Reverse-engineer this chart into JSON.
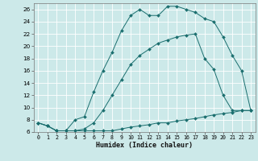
{
  "title": "",
  "xlabel": "Humidex (Indice chaleur)",
  "background_color": "#cce9e9",
  "grid_color": "#aacccc",
  "line_color": "#1a6e6e",
  "xlim": [
    -0.5,
    23.5
  ],
  "ylim": [
    6,
    27
  ],
  "xticks": [
    0,
    1,
    2,
    3,
    4,
    5,
    6,
    7,
    8,
    9,
    10,
    11,
    12,
    13,
    14,
    15,
    16,
    17,
    18,
    19,
    20,
    21,
    22,
    23
  ],
  "yticks": [
    6,
    8,
    10,
    12,
    14,
    16,
    18,
    20,
    22,
    24,
    26
  ],
  "line1_x": [
    0,
    1,
    2,
    3,
    4,
    5,
    6,
    7,
    8,
    9,
    10,
    11,
    12,
    13,
    14,
    15,
    16,
    17,
    18,
    19,
    20,
    21,
    22,
    23
  ],
  "line1_y": [
    7.5,
    7.0,
    6.2,
    6.2,
    6.2,
    6.2,
    6.2,
    6.2,
    6.2,
    6.5,
    6.8,
    7.0,
    7.2,
    7.5,
    7.5,
    7.8,
    8.0,
    8.2,
    8.5,
    8.8,
    9.0,
    9.2,
    9.5,
    9.5
  ],
  "line2_x": [
    0,
    1,
    2,
    3,
    4,
    5,
    6,
    7,
    8,
    9,
    10,
    11,
    12,
    13,
    14,
    15,
    16,
    17,
    18,
    19,
    20,
    21,
    22,
    23
  ],
  "line2_y": [
    7.5,
    7.0,
    6.2,
    6.2,
    6.2,
    6.5,
    7.5,
    9.5,
    12.0,
    14.5,
    17.0,
    18.5,
    19.5,
    20.5,
    21.0,
    21.5,
    21.8,
    22.0,
    18.0,
    16.2,
    12.0,
    9.5,
    9.5,
    9.5
  ],
  "line3_x": [
    0,
    1,
    2,
    3,
    4,
    5,
    6,
    7,
    8,
    9,
    10,
    11,
    12,
    13,
    14,
    15,
    16,
    17,
    18,
    19,
    20,
    21,
    22,
    23
  ],
  "line3_y": [
    7.5,
    7.0,
    6.2,
    6.2,
    8.0,
    8.5,
    12.5,
    16.0,
    19.0,
    22.5,
    25.0,
    26.0,
    25.0,
    25.0,
    26.5,
    26.5,
    26.0,
    25.5,
    24.5,
    24.0,
    21.5,
    18.5,
    16.0,
    9.5
  ]
}
